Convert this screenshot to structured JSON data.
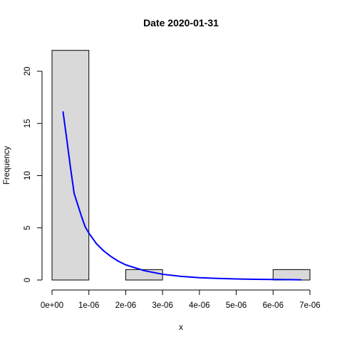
{
  "chart_data": {
    "type": "bar",
    "subtype": "histogram-with-density-curve",
    "title": "Date 2020-01-31",
    "xlabel": "x",
    "ylabel": "Frequency",
    "xlim": [
      0,
      7e-06
    ],
    "ylim": [
      0,
      22
    ],
    "x_ticks": [
      0,
      1e-06,
      2e-06,
      3e-06,
      4e-06,
      5e-06,
      6e-06,
      7e-06
    ],
    "x_tick_labels": [
      "0e+00",
      "1e-06",
      "2e-06",
      "3e-06",
      "4e-06",
      "5e-06",
      "6e-06",
      "7e-06"
    ],
    "y_ticks": [
      0,
      5,
      10,
      15,
      20
    ],
    "y_tick_labels": [
      "0",
      "5",
      "10",
      "15",
      "20"
    ],
    "bins": [
      {
        "start": 0,
        "end": 1e-06,
        "count": 22
      },
      {
        "start": 1e-06,
        "end": 2e-06,
        "count": 0
      },
      {
        "start": 2e-06,
        "end": 3e-06,
        "count": 1
      },
      {
        "start": 3e-06,
        "end": 4e-06,
        "count": 0
      },
      {
        "start": 4e-06,
        "end": 5e-06,
        "count": 0
      },
      {
        "start": 5e-06,
        "end": 6e-06,
        "count": 0
      },
      {
        "start": 6e-06,
        "end": 7e-06,
        "count": 1
      }
    ],
    "curve": {
      "x": [
        3e-07,
        4e-07,
        5e-07,
        6e-07,
        7e-07,
        8e-07,
        9e-07,
        1e-06,
        1.2e-06,
        1.4e-06,
        1.6e-06,
        1.8e-06,
        2e-06,
        2.5e-06,
        3e-06,
        3.5e-06,
        4e-06,
        4.5e-06,
        5e-06,
        5.5e-06,
        6e-06,
        6.5e-06,
        6.75e-06
      ],
      "y": [
        16.1,
        13.5,
        10.8,
        8.3,
        7.2,
        6.1,
        5.1,
        4.5,
        3.5,
        2.8,
        2.25,
        1.8,
        1.45,
        0.9,
        0.55,
        0.35,
        0.22,
        0.15,
        0.1,
        0.07,
        0.05,
        0.03,
        0.02
      ],
      "color": "#0000ff"
    },
    "bar_fill": "#d9d9d9",
    "bar_stroke": "#000000",
    "grid": false,
    "legend": "none"
  }
}
